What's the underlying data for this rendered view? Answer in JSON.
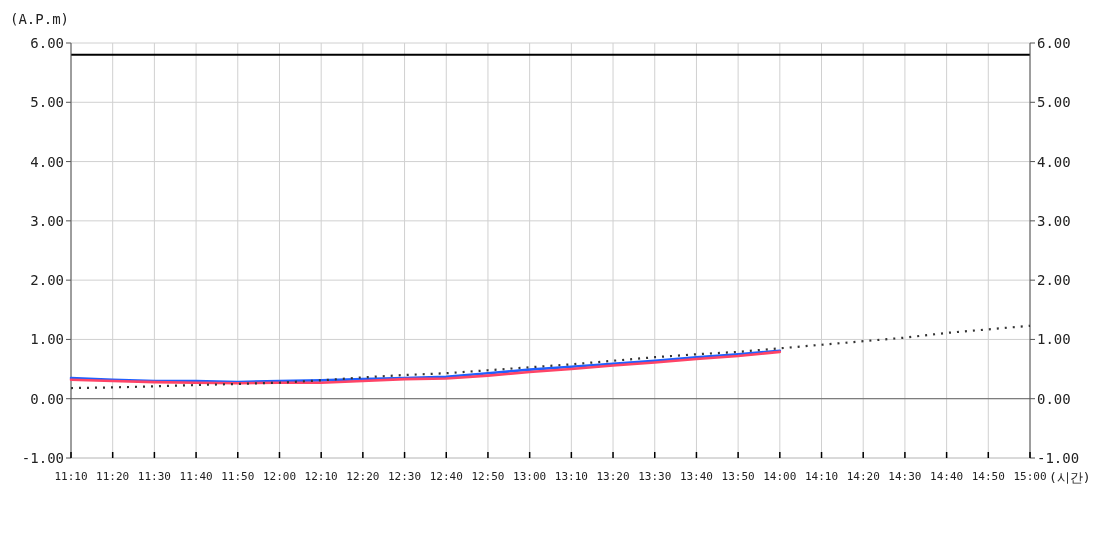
{
  "chart_data": {
    "type": "line",
    "ylabel": "(A.P.m)",
    "xlabel": "(시간)",
    "x": [
      11.1667,
      11.3333,
      11.5,
      11.6667,
      11.8333,
      12,
      12.1667,
      12.3333,
      12.5,
      12.6667,
      12.8333,
      13,
      13.1667,
      13.3333,
      13.5,
      13.6667,
      13.8333,
      14
    ],
    "series": [
      {
        "color": "#1f5fff",
        "values": [
          0.35,
          0.32,
          0.3,
          0.3,
          0.28,
          0.3,
          0.31,
          0.33,
          0.35,
          0.37,
          0.43,
          0.49,
          0.54,
          0.59,
          0.64,
          0.7,
          0.75,
          0.81
        ]
      },
      {
        "color": "#ff4466",
        "values": [
          0.32,
          0.3,
          0.28,
          0.27,
          0.26,
          0.27,
          0.27,
          0.3,
          0.33,
          0.34,
          0.39,
          0.45,
          0.5,
          0.56,
          0.61,
          0.67,
          0.72,
          0.79
        ]
      },
      {
        "color": "#333333",
        "line_style": "dotted",
        "x": [
          11.1667,
          11.3333,
          11.5,
          11.6667,
          11.8333,
          12,
          12.1667,
          12.3333,
          12.5,
          12.6667,
          12.8333,
          13,
          13.1667,
          13.3333,
          13.5,
          13.6667,
          13.8333,
          14,
          14.1667,
          14.3333,
          14.5,
          14.6667,
          14.8333,
          15
        ],
        "values": [
          0.18,
          0.19,
          0.21,
          0.23,
          0.25,
          0.27,
          0.31,
          0.36,
          0.4,
          0.43,
          0.48,
          0.53,
          0.58,
          0.64,
          0.7,
          0.75,
          0.79,
          0.85,
          0.91,
          0.97,
          1.03,
          1.11,
          1.17,
          1.23
        ]
      }
    ],
    "xlim": [
      11.1667,
      15
    ],
    "xticks": [
      {
        "value": 11.1667,
        "label": "11:10"
      },
      {
        "value": 11.3333,
        "label": "11:20"
      },
      {
        "value": 11.5,
        "label": "11:30"
      },
      {
        "value": 11.6667,
        "label": "11:40"
      },
      {
        "value": 11.8333,
        "label": "11:50"
      },
      {
        "value": 12,
        "label": "12:00"
      },
      {
        "value": 12.1667,
        "label": "12:10"
      },
      {
        "value": 12.3333,
        "label": "12:20"
      },
      {
        "value": 12.5,
        "label": "12:30"
      },
      {
        "value": 12.6667,
        "label": "12:40"
      },
      {
        "value": 12.8333,
        "label": "12:50"
      },
      {
        "value": 13,
        "label": "13:00"
      },
      {
        "value": 13.1667,
        "label": "13:10"
      },
      {
        "value": 13.3333,
        "label": "13:20"
      },
      {
        "value": 13.5,
        "label": "13:30"
      },
      {
        "value": 13.6667,
        "label": "13:40"
      },
      {
        "value": 13.8333,
        "label": "13:50"
      },
      {
        "value": 14,
        "label": "14:00"
      },
      {
        "value": 14.1667,
        "label": "14:10"
      },
      {
        "value": 14.3333,
        "label": "14:20"
      },
      {
        "value": 14.5,
        "label": "14:30"
      },
      {
        "value": 14.6667,
        "label": "14:40"
      },
      {
        "value": 14.8333,
        "label": "14:50"
      },
      {
        "value": 15,
        "label": "15:00"
      }
    ],
    "ylim": [
      -1,
      6
    ],
    "yticks": [
      {
        "value": -1,
        "label": "-1.00"
      },
      {
        "value": 0,
        "label": "0.00"
      },
      {
        "value": 1,
        "label": "1.00"
      },
      {
        "value": 2,
        "label": "2.00"
      },
      {
        "value": 3,
        "label": "3.00"
      },
      {
        "value": 4,
        "label": "4.00"
      },
      {
        "value": 5,
        "label": "5.00"
      },
      {
        "value": 6,
        "label": "6.00"
      }
    ],
    "y2lim": [
      -1,
      6
    ],
    "y2ticks": [
      {
        "value": -1,
        "label": "-1.00"
      },
      {
        "value": 0,
        "label": "0.00"
      },
      {
        "value": 1,
        "label": "1.00"
      },
      {
        "value": 2,
        "label": "2.00"
      },
      {
        "value": 3,
        "label": "3.00"
      },
      {
        "value": 4,
        "label": "4.00"
      },
      {
        "value": 5,
        "label": "5.00"
      },
      {
        "value": 6,
        "label": "6.00"
      }
    ],
    "ref_lines": [
      {
        "axis": "y",
        "value": 5.8,
        "color": "#000000"
      },
      {
        "axis": "y",
        "value": 0,
        "color": "#666666"
      }
    ],
    "grid": true,
    "line_style": "solid",
    "marker": "none"
  }
}
